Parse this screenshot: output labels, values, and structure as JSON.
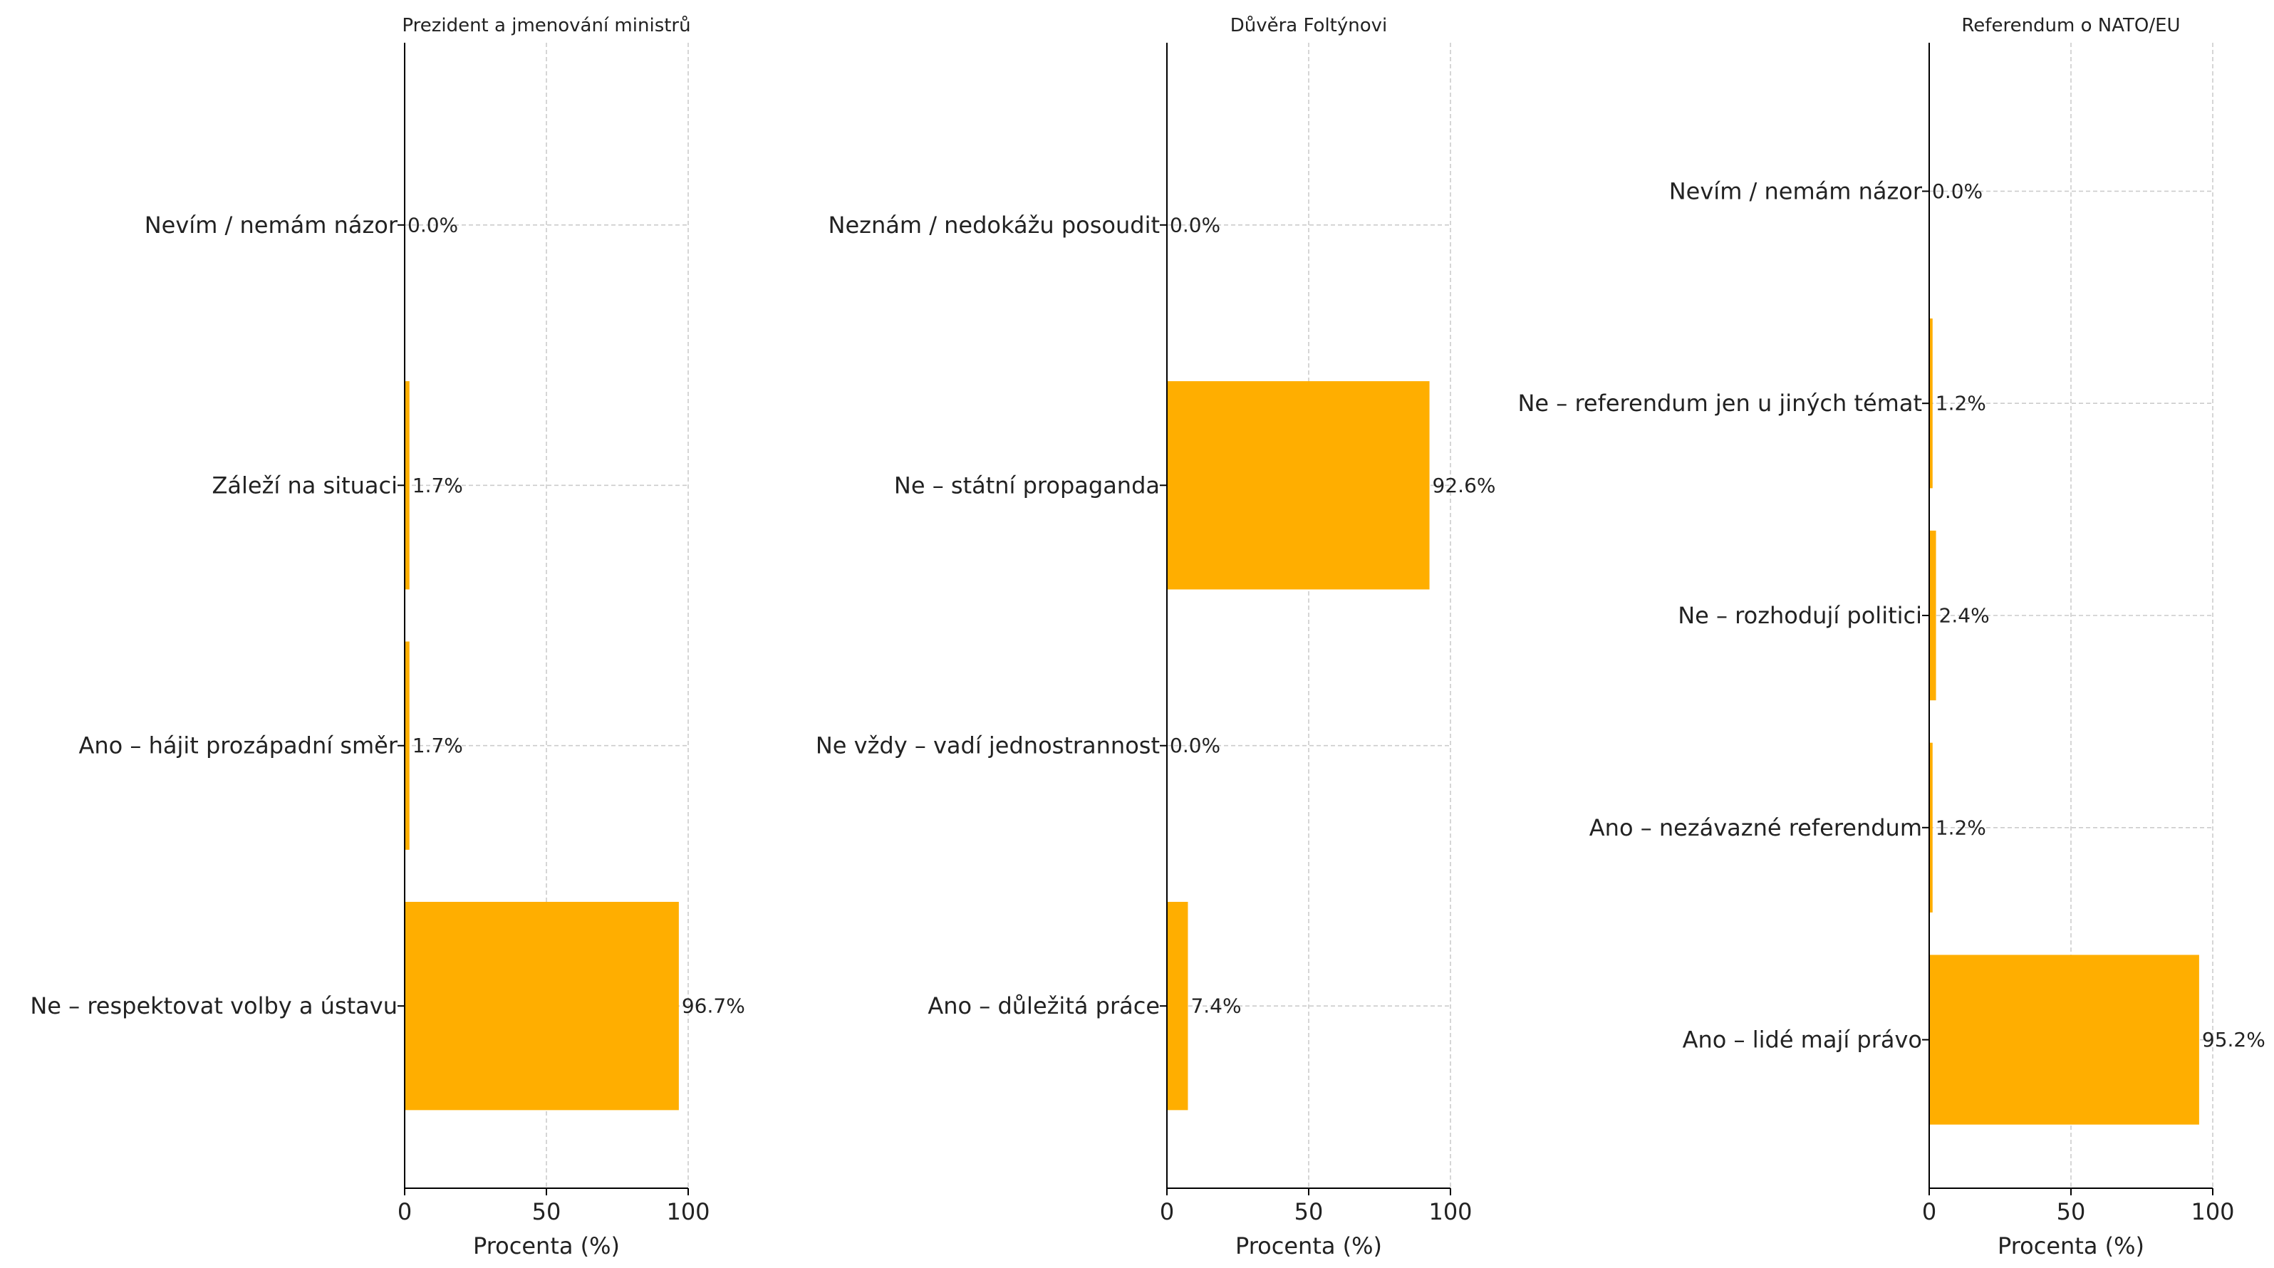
{
  "chart_data": [
    {
      "type": "bar",
      "orientation": "horizontal",
      "title": "Prezident a jmenování ministrů",
      "xlabel": "Procenta (%)",
      "xlim": [
        0,
        100
      ],
      "xticks": [
        "0",
        "50",
        "100"
      ],
      "categories": [
        "Ne – respektovat volby a ústavu",
        "Ano – hájit prozápadní směr",
        "Záleží na situaci",
        "Nevím / nemám názor"
      ],
      "values": [
        96.7,
        1.7,
        1.7,
        0.0
      ],
      "value_labels": [
        "96.7%",
        "1.7%",
        "1.7%",
        "0.0%"
      ],
      "grid": true
    },
    {
      "type": "bar",
      "orientation": "horizontal",
      "title": "Důvěra Foltýnovi",
      "xlabel": "Procenta (%)",
      "xlim": [
        0,
        100
      ],
      "xticks": [
        "0",
        "50",
        "100"
      ],
      "categories": [
        "Ano – důležitá práce",
        "Ne vždy – vadí jednostrannost",
        "Ne – státní propaganda",
        "Neznám / nedokážu posoudit"
      ],
      "values": [
        7.4,
        0.0,
        92.6,
        0.0
      ],
      "value_labels": [
        "7.4%",
        "0.0%",
        "92.6%",
        "0.0%"
      ],
      "grid": true
    },
    {
      "type": "bar",
      "orientation": "horizontal",
      "title": "Referendum o NATO/EU",
      "xlabel": "Procenta (%)",
      "xlim": [
        0,
        100
      ],
      "xticks": [
        "0",
        "50",
        "100"
      ],
      "categories": [
        "Ano – lidé mají právo",
        "Ano – nezávazné referendum",
        "Ne – rozhodují politici",
        "Ne – referendum jen u jiných témat",
        "Nevím / nemám názor"
      ],
      "values": [
        95.2,
        1.2,
        2.4,
        1.2,
        0.0
      ],
      "value_labels": [
        "95.2%",
        "1.2%",
        "2.4%",
        "1.2%",
        "0.0%"
      ],
      "grid": true
    }
  ],
  "colors": {
    "bar": "#ffae00",
    "axis": "#000000",
    "grid": "#cccccc",
    "text": "#222222"
  }
}
